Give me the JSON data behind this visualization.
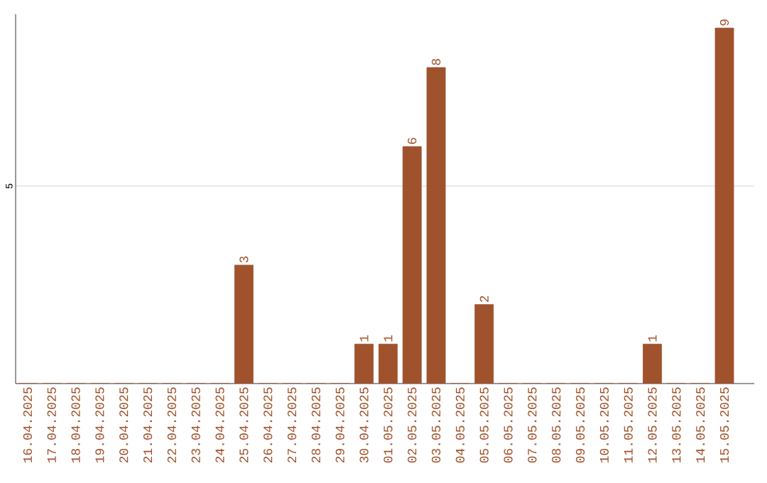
{
  "chart_data": {
    "type": "bar",
    "categories": [
      "16.04.2025",
      "17.04.2025",
      "18.04.2025",
      "19.04.2025",
      "20.04.2025",
      "21.04.2025",
      "22.04.2025",
      "23.04.2025",
      "24.04.2025",
      "25.04.2025",
      "26.04.2025",
      "27.04.2025",
      "28.04.2025",
      "29.04.2025",
      "30.04.2025",
      "01.05.2025",
      "02.05.2025",
      "03.05.2025",
      "04.05.2025",
      "05.05.2025",
      "06.05.2025",
      "07.05.2025",
      "08.05.2025",
      "09.05.2025",
      "10.05.2025",
      "11.05.2025",
      "12.05.2025",
      "13.05.2025",
      "14.05.2025",
      "15.05.2025"
    ],
    "values": [
      0,
      0,
      0,
      0,
      0,
      0,
      0,
      0,
      0,
      3,
      0,
      0,
      0,
      0,
      1,
      1,
      6,
      8,
      0,
      2,
      0,
      0,
      0,
      0,
      0,
      0,
      1,
      0,
      0,
      9
    ],
    "value_labels": [
      null,
      null,
      null,
      null,
      null,
      null,
      null,
      null,
      null,
      "3",
      null,
      null,
      null,
      null,
      "1",
      "1",
      "6",
      "8",
      null,
      "2",
      null,
      null,
      null,
      null,
      null,
      null,
      "1",
      null,
      null,
      "9"
    ],
    "color": "#a0522d",
    "ylim": [
      0,
      9.35
    ],
    "yticks": [
      5
    ],
    "grid": "y"
  }
}
